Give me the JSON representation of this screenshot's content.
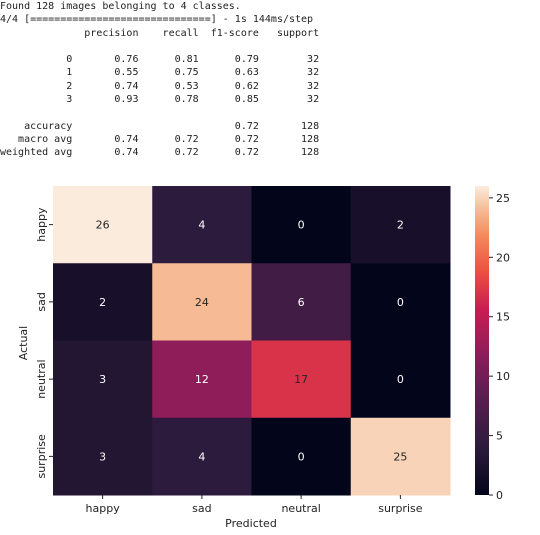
{
  "console": {
    "lines": [
      "Found 128 images belonging to 4 classes.",
      "4/4 [==============================] - 1s 144ms/step",
      "              precision    recall  f1-score   support",
      "",
      "           0       0.76      0.81      0.79        32",
      "           1       0.55      0.75      0.63        32",
      "           2       0.74      0.53      0.62        32",
      "           3       0.93      0.78      0.85        32",
      "",
      "    accuracy                           0.72       128",
      "   macro avg       0.74      0.72      0.72       128",
      "weighted avg       0.74      0.72      0.72       128"
    ]
  },
  "chart_data": {
    "type": "heatmap",
    "x_categories": [
      "happy",
      "sad",
      "neutral",
      "surprise"
    ],
    "y_categories": [
      "happy",
      "sad",
      "neutral",
      "surprise"
    ],
    "values": [
      [
        26,
        4,
        0,
        2
      ],
      [
        2,
        24,
        6,
        0
      ],
      [
        3,
        12,
        17,
        0
      ],
      [
        3,
        4,
        0,
        25
      ]
    ],
    "xlabel": "Predicted",
    "ylabel": "Actual",
    "colorbar": {
      "min": 0,
      "max": 26,
      "ticks": [
        0,
        5,
        10,
        15,
        20,
        25
      ]
    },
    "colormap": "rocket"
  }
}
